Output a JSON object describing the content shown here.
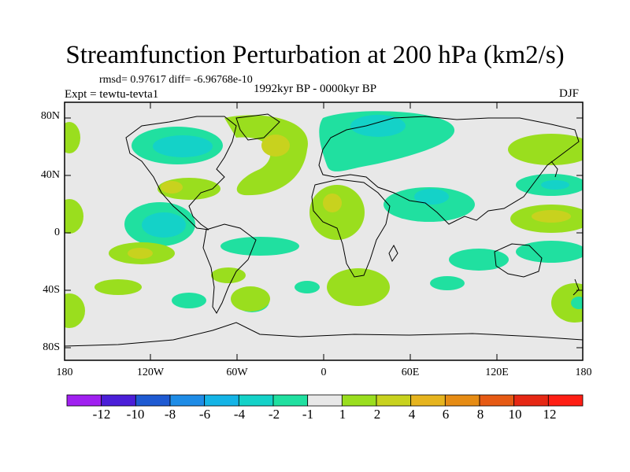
{
  "title": "Streamfunction Perturbation at 200 hPa (km2/s)",
  "stats": "rmsd= 0.97617 diff= -6.96768e-10",
  "experiment": "Expt = tewtu-tevta1",
  "period": "1992kyr BP - 0000kyr BP",
  "season": "DJF",
  "lat_labels": [
    "80N",
    "40N",
    "0",
    "40S",
    "80S"
  ],
  "lon_labels": [
    "180",
    "120W",
    "60W",
    "0",
    "60E",
    "120E",
    "180"
  ],
  "colorbar": {
    "labels": [
      "-12",
      "-10",
      "-8",
      "-6",
      "-4",
      "-2",
      "-1",
      "1",
      "2",
      "4",
      "6",
      "8",
      "10",
      "12"
    ],
    "colors": [
      "#a020f0",
      "#4b1ed8",
      "#1e5ad2",
      "#1e8ce6",
      "#14b4e6",
      "#14d2c8",
      "#20e0a0",
      "#e8e8e8",
      "#9ade1e",
      "#c8d21e",
      "#e6b41e",
      "#e68c14",
      "#e65a14",
      "#e62814",
      "#ff1e14"
    ]
  }
}
